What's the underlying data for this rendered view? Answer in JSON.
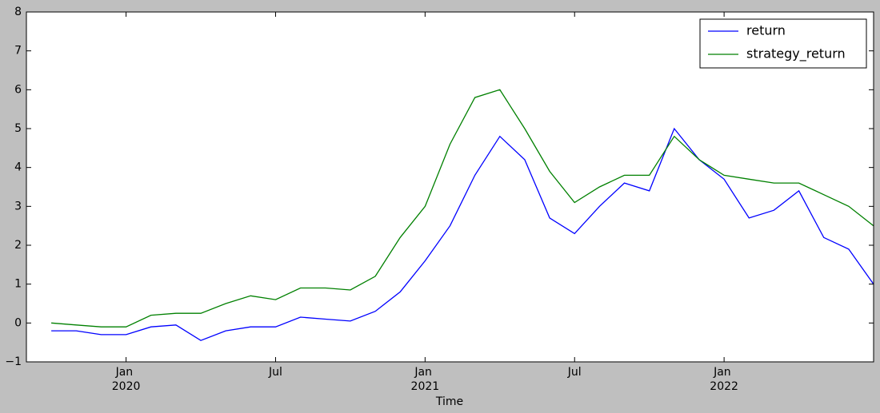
{
  "chart_data": {
    "type": "line",
    "x_label": "Time",
    "x": [
      "2019-10",
      "2019-11",
      "2019-12",
      "2020-01",
      "2020-02",
      "2020-03",
      "2020-04",
      "2020-05",
      "2020-06",
      "2020-07",
      "2020-08",
      "2020-09",
      "2020-10",
      "2020-11",
      "2020-12",
      "2021-01",
      "2021-02",
      "2021-03",
      "2021-04",
      "2021-05",
      "2021-06",
      "2021-07",
      "2021-08",
      "2021-09",
      "2021-10",
      "2021-11",
      "2021-12",
      "2022-01",
      "2022-02",
      "2022-03",
      "2022-04",
      "2022-05",
      "2022-06",
      "2022-07"
    ],
    "series": [
      {
        "name": "return",
        "color": "#0000ff",
        "values": [
          -0.2,
          -0.2,
          -0.3,
          -0.3,
          -0.1,
          -0.05,
          -0.45,
          -0.2,
          -0.1,
          -0.1,
          0.15,
          0.1,
          0.05,
          0.3,
          0.8,
          1.6,
          2.5,
          3.8,
          4.8,
          4.2,
          2.7,
          2.3,
          3.0,
          3.6,
          3.4,
          5.0,
          4.2,
          3.7,
          2.7,
          2.9,
          3.4,
          2.2,
          1.9,
          1.0
        ]
      },
      {
        "name": "strategy_return",
        "color": "#008000",
        "values": [
          0.0,
          -0.05,
          -0.1,
          -0.1,
          0.2,
          0.25,
          0.25,
          0.5,
          0.7,
          0.6,
          0.9,
          0.9,
          0.85,
          1.2,
          2.2,
          3.0,
          4.6,
          5.8,
          6.0,
          5.0,
          3.9,
          3.1,
          3.5,
          3.8,
          3.8,
          4.8,
          4.2,
          3.8,
          3.7,
          3.6,
          3.6,
          3.3,
          3.0,
          2.5
        ]
      }
    ],
    "xlim": [
      "2019-09",
      "2022-07"
    ],
    "xticks": [
      {
        "value": "2020-01",
        "label": "Jan 2020"
      },
      {
        "value": "2020-07",
        "label": "Jul"
      },
      {
        "value": "2021-01",
        "label": "Jan 2021"
      },
      {
        "value": "2021-07",
        "label": "Jul"
      },
      {
        "value": "2022-01",
        "label": "Jan 2022"
      }
    ],
    "ylim": [
      -1,
      8
    ],
    "yticks": [
      {
        "value": -1,
        "label": "−1"
      },
      0,
      1,
      2,
      3,
      4,
      5,
      6,
      7,
      8
    ],
    "legend": "upper right"
  }
}
